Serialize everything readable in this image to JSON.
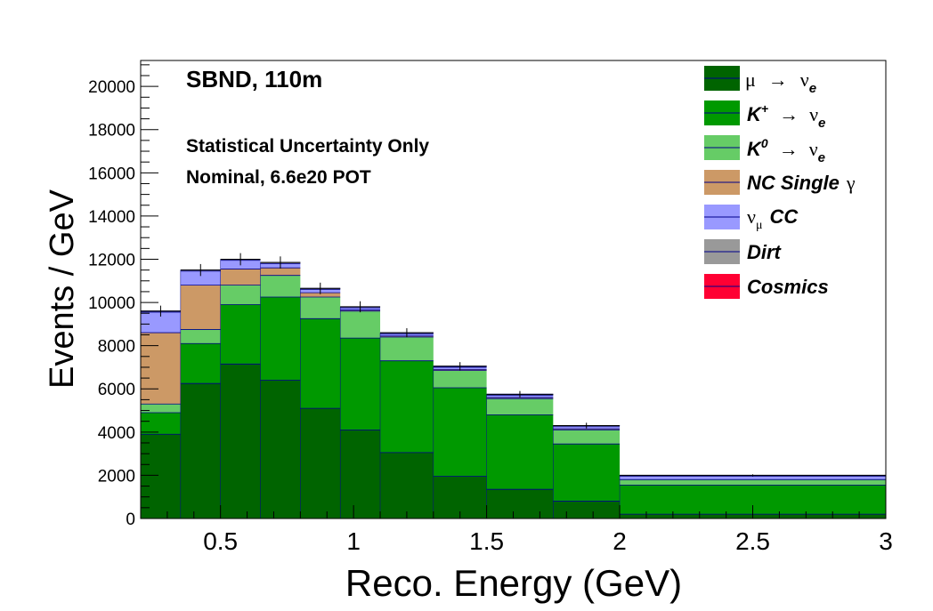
{
  "chart_data": {
    "type": "bar",
    "stacked": true,
    "title_lines": [
      "SBND, 110m",
      "Statistical Uncertainty Only",
      "Nominal, 6.6e20 POT"
    ],
    "xlabel": "Reco. Energy (GeV)",
    "ylabel": "Events / GeV",
    "xlim": [
      0.2,
      3.0
    ],
    "ylim": [
      0,
      21200
    ],
    "xticks": [
      0.5,
      1,
      1.5,
      2,
      2.5,
      3
    ],
    "xtick_labels": [
      "0.5",
      "1",
      "1.5",
      "2",
      "2.5",
      "3"
    ],
    "yticks": [
      0,
      2000,
      4000,
      6000,
      8000,
      10000,
      12000,
      14000,
      16000,
      18000,
      20000
    ],
    "ytick_labels": [
      "0",
      "2000",
      "4000",
      "6000",
      "8000",
      "10000",
      "12000",
      "14000",
      "16000",
      "18000",
      "20000"
    ],
    "bin_edges": [
      0.2,
      0.35,
      0.5,
      0.65,
      0.8,
      0.95,
      1.1,
      1.3,
      1.5,
      1.75,
      2.0,
      3.0
    ],
    "series": [
      {
        "name": "μ → νe",
        "color": "#006400",
        "values": [
          3900,
          6250,
          7150,
          6400,
          5100,
          4100,
          3050,
          1950,
          1350,
          800,
          200
        ]
      },
      {
        "name": "K+ → νe",
        "color": "#009900",
        "values": [
          1000,
          1850,
          2750,
          3850,
          4150,
          4250,
          4250,
          4100,
          3450,
          2650,
          1350
        ]
      },
      {
        "name": "K0 → νe",
        "color": "#66cc66",
        "values": [
          400,
          650,
          900,
          1000,
          1000,
          1250,
          1100,
          800,
          750,
          650,
          250
        ]
      },
      {
        "name": "NC Single γ",
        "color": "#cc9966",
        "values": [
          3300,
          2050,
          750,
          350,
          200,
          50,
          50,
          50,
          50,
          50,
          0
        ]
      },
      {
        "name": "νμ CC",
        "color": "#9999ff",
        "values": [
          950,
          650,
          400,
          200,
          150,
          100,
          100,
          100,
          100,
          100,
          150
        ]
      },
      {
        "name": "Dirt",
        "color": "#999999",
        "values": [
          50,
          50,
          50,
          50,
          50,
          50,
          50,
          50,
          50,
          50,
          50
        ]
      },
      {
        "name": "Cosmics",
        "color": "#ff0033",
        "values": [
          0,
          0,
          0,
          0,
          0,
          0,
          0,
          0,
          0,
          0,
          0
        ]
      }
    ],
    "legend": {
      "placement": "top-right",
      "entries": [
        {
          "label": "μ",
          "arrow": "→",
          "nu": "ν",
          "sub": "e",
          "sup": ""
        },
        {
          "label": "K",
          "sup": "+",
          "arrow": "→",
          "nu": "ν",
          "sub": "e"
        },
        {
          "label": "K",
          "sup": "0",
          "arrow": "→",
          "nu": "ν",
          "sub": "e"
        },
        {
          "label": "NC Single",
          "gamma": "γ"
        },
        {
          "label": "ν",
          "sub": "μ",
          "suffix": "CC"
        },
        {
          "label": "Dirt"
        },
        {
          "label": "Cosmics"
        }
      ]
    },
    "grid": false
  }
}
